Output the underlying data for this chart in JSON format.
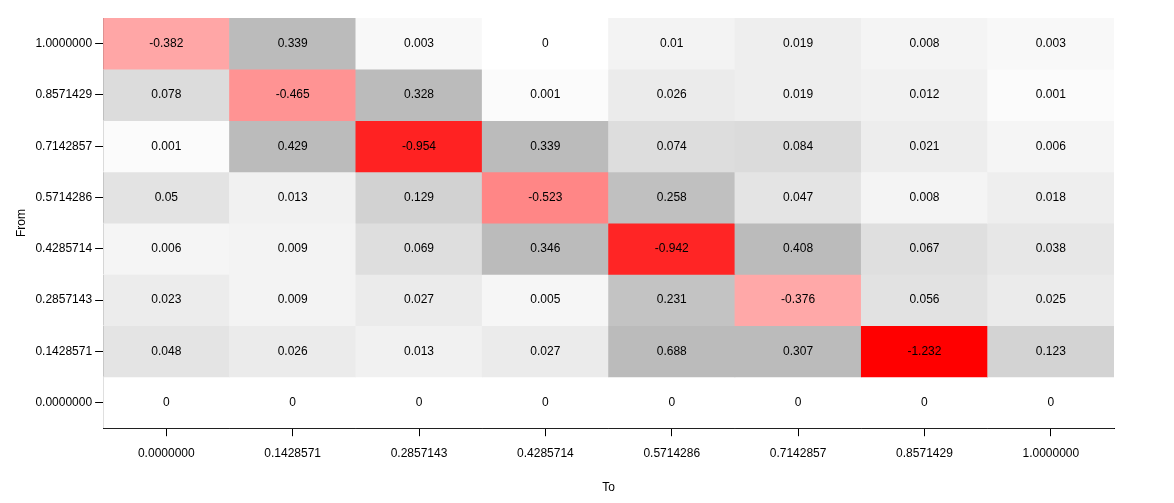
{
  "chart_data": {
    "type": "heatmap",
    "xlabel": "To",
    "ylabel": "From",
    "categories": [
      "0.0000000",
      "0.1428571",
      "0.2857143",
      "0.4285714",
      "0.5714286",
      "0.7142857",
      "0.8571429",
      "1.0000000"
    ],
    "y_categories": [
      "1.0000000",
      "0.8571429",
      "0.7142857",
      "0.5714286",
      "0.4285714",
      "0.2857143",
      "0.1428571",
      "0.0000000"
    ],
    "cells": [
      [
        -0.382,
        0.339,
        0.003,
        0,
        0.01,
        0.019,
        0.008,
        0.003
      ],
      [
        0.078,
        -0.465,
        0.328,
        0.001,
        0.026,
        0.019,
        0.012,
        0.001
      ],
      [
        0.001,
        0.429,
        -0.954,
        0.339,
        0.074,
        0.084,
        0.021,
        0.006
      ],
      [
        0.05,
        0.013,
        0.129,
        -0.523,
        0.258,
        0.047,
        0.008,
        0.018
      ],
      [
        0.006,
        0.009,
        0.069,
        0.346,
        -0.942,
        0.408,
        0.067,
        0.038
      ],
      [
        0.023,
        0.009,
        0.027,
        0.005,
        0.231,
        -0.376,
        0.056,
        0.025
      ],
      [
        0.048,
        0.026,
        0.013,
        0.027,
        0.688,
        0.307,
        -1.232,
        0.123
      ],
      [
        0,
        0,
        0,
        0,
        0,
        0,
        0,
        0
      ]
    ],
    "data_labels": true,
    "grid": false
  }
}
